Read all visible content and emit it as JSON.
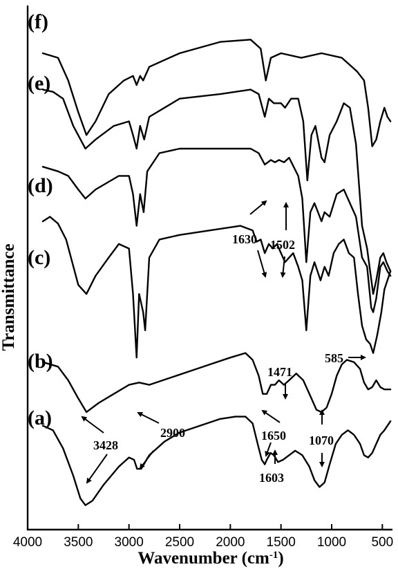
{
  "chart_data": {
    "type": "line",
    "title": "",
    "xlabel": "Wavenumber (cm",
    "xlabel_sup": "-1",
    "xlabel_end": ")",
    "ylabel": "Transmittance",
    "xlim": [
      4000,
      400
    ],
    "x_reversed": true,
    "ytick_labels_shown": false,
    "xticks": [
      {
        "value": 4000,
        "label": "4000"
      },
      {
        "value": 3500,
        "label": "3500"
      },
      {
        "value": 3000,
        "label": "3000"
      },
      {
        "value": 2500,
        "label": "2500"
      },
      {
        "value": 2000,
        "label": "2000"
      },
      {
        "value": 1500,
        "label": "1500"
      },
      {
        "value": 1000,
        "label": "1000"
      },
      {
        "value": 500,
        "label": "500"
      }
    ],
    "series": [
      {
        "name": "(f)",
        "points": [
          [
            3850,
            0.93
          ],
          [
            3700,
            0.92
          ],
          [
            3600,
            0.87
          ],
          [
            3500,
            0.8
          ],
          [
            3420,
            0.75
          ],
          [
            3330,
            0.78
          ],
          [
            3200,
            0.84
          ],
          [
            3050,
            0.87
          ],
          [
            2960,
            0.88
          ],
          [
            2925,
            0.86
          ],
          [
            2890,
            0.88
          ],
          [
            2860,
            0.87
          ],
          [
            2800,
            0.9
          ],
          [
            2500,
            0.93
          ],
          [
            2100,
            0.955
          ],
          [
            1800,
            0.96
          ],
          [
            1700,
            0.94
          ],
          [
            1650,
            0.87
          ],
          [
            1600,
            0.92
          ],
          [
            1500,
            0.93
          ],
          [
            1300,
            0.92
          ],
          [
            1100,
            0.93
          ],
          [
            900,
            0.92
          ],
          [
            750,
            0.89
          ],
          [
            680,
            0.87
          ],
          [
            640,
            0.81
          ],
          [
            600,
            0.725
          ],
          [
            560,
            0.74
          ],
          [
            520,
            0.78
          ],
          [
            480,
            0.81
          ],
          [
            450,
            0.79
          ],
          [
            420,
            0.78
          ]
        ]
      },
      {
        "name": "(e)",
        "points": [
          [
            3850,
            0.85
          ],
          [
            3750,
            0.845
          ],
          [
            3650,
            0.83
          ],
          [
            3550,
            0.77
          ],
          [
            3430,
            0.72
          ],
          [
            3330,
            0.74
          ],
          [
            3150,
            0.77
          ],
          [
            3000,
            0.78
          ],
          [
            2960,
            0.75
          ],
          [
            2925,
            0.72
          ],
          [
            2890,
            0.77
          ],
          [
            2850,
            0.74
          ],
          [
            2800,
            0.79
          ],
          [
            2500,
            0.83
          ],
          [
            2100,
            0.84
          ],
          [
            1800,
            0.85
          ],
          [
            1720,
            0.84
          ],
          [
            1660,
            0.79
          ],
          [
            1620,
            0.83
          ],
          [
            1570,
            0.82
          ],
          [
            1500,
            0.82
          ],
          [
            1460,
            0.81
          ],
          [
            1400,
            0.83
          ],
          [
            1330,
            0.83
          ],
          [
            1280,
            0.78
          ],
          [
            1240,
            0.65
          ],
          [
            1200,
            0.75
          ],
          [
            1160,
            0.77
          ],
          [
            1100,
            0.7
          ],
          [
            1070,
            0.69
          ],
          [
            1020,
            0.75
          ],
          [
            950,
            0.78
          ],
          [
            880,
            0.82
          ],
          [
            820,
            0.81
          ],
          [
            760,
            0.73
          ],
          [
            700,
            0.55
          ],
          [
            650,
            0.5
          ],
          [
            620,
            0.45
          ],
          [
            590,
            0.4
          ],
          [
            560,
            0.43
          ],
          [
            520,
            0.48
          ],
          [
            490,
            0.49
          ],
          [
            460,
            0.47
          ],
          [
            420,
            0.45
          ]
        ]
      },
      {
        "name": "(d)",
        "points": [
          [
            3850,
            0.68
          ],
          [
            3700,
            0.67
          ],
          [
            3600,
            0.66
          ],
          [
            3500,
            0.63
          ],
          [
            3430,
            0.61
          ],
          [
            3330,
            0.63
          ],
          [
            3100,
            0.66
          ],
          [
            3000,
            0.66
          ],
          [
            2960,
            0.62
          ],
          [
            2925,
            0.55
          ],
          [
            2890,
            0.62
          ],
          [
            2855,
            0.58
          ],
          [
            2820,
            0.67
          ],
          [
            2700,
            0.71
          ],
          [
            2500,
            0.72
          ],
          [
            2100,
            0.72
          ],
          [
            1800,
            0.72
          ],
          [
            1720,
            0.71
          ],
          [
            1660,
            0.685
          ],
          [
            1600,
            0.695
          ],
          [
            1560,
            0.69
          ],
          [
            1520,
            0.695
          ],
          [
            1470,
            0.69
          ],
          [
            1420,
            0.7
          ],
          [
            1330,
            0.66
          ],
          [
            1290,
            0.61
          ],
          [
            1250,
            0.47
          ],
          [
            1210,
            0.58
          ],
          [
            1170,
            0.6
          ],
          [
            1100,
            0.56
          ],
          [
            1070,
            0.58
          ],
          [
            1020,
            0.57
          ],
          [
            950,
            0.62
          ],
          [
            880,
            0.63
          ],
          [
            800,
            0.59
          ],
          [
            760,
            0.57
          ],
          [
            700,
            0.48
          ],
          [
            650,
            0.46
          ],
          [
            610,
            0.37
          ],
          [
            590,
            0.36
          ],
          [
            560,
            0.39
          ],
          [
            520,
            0.46
          ],
          [
            490,
            0.47
          ],
          [
            450,
            0.45
          ],
          [
            420,
            0.44
          ]
        ]
      },
      {
        "name": "(c)",
        "points": [
          [
            3850,
            0.56
          ],
          [
            3780,
            0.57
          ],
          [
            3700,
            0.555
          ],
          [
            3620,
            0.52
          ],
          [
            3560,
            0.47
          ],
          [
            3500,
            0.42
          ],
          [
            3420,
            0.4
          ],
          [
            3330,
            0.44
          ],
          [
            3200,
            0.48
          ],
          [
            3100,
            0.51
          ],
          [
            3000,
            0.5
          ],
          [
            2960,
            0.4
          ],
          [
            2925,
            0.26
          ],
          [
            2900,
            0.4
          ],
          [
            2860,
            0.36
          ],
          [
            2840,
            0.32
          ],
          [
            2800,
            0.48
          ],
          [
            2700,
            0.52
          ],
          [
            2500,
            0.53
          ],
          [
            2200,
            0.54
          ],
          [
            1900,
            0.55
          ],
          [
            1780,
            0.54
          ],
          [
            1740,
            0.515
          ],
          [
            1700,
            0.52
          ],
          [
            1660,
            0.49
          ],
          [
            1620,
            0.51
          ],
          [
            1580,
            0.5
          ],
          [
            1540,
            0.51
          ],
          [
            1500,
            0.49
          ],
          [
            1460,
            0.47
          ],
          [
            1420,
            0.48
          ],
          [
            1380,
            0.49
          ],
          [
            1330,
            0.46
          ],
          [
            1290,
            0.43
          ],
          [
            1250,
            0.32
          ],
          [
            1210,
            0.44
          ],
          [
            1170,
            0.47
          ],
          [
            1110,
            0.43
          ],
          [
            1070,
            0.46
          ],
          [
            1030,
            0.44
          ],
          [
            980,
            0.49
          ],
          [
            930,
            0.51
          ],
          [
            880,
            0.52
          ],
          [
            830,
            0.49
          ],
          [
            780,
            0.48
          ],
          [
            740,
            0.4
          ],
          [
            700,
            0.33
          ],
          [
            660,
            0.3
          ],
          [
            620,
            0.29
          ],
          [
            590,
            0.27
          ],
          [
            550,
            0.31
          ],
          [
            510,
            0.36
          ],
          [
            480,
            0.41
          ],
          [
            450,
            0.43
          ],
          [
            420,
            0.45
          ]
        ]
      },
      {
        "name": "(b)",
        "points": [
          [
            3850,
            0.25
          ],
          [
            3700,
            0.24
          ],
          [
            3600,
            0.21
          ],
          [
            3500,
            0.17
          ],
          [
            3420,
            0.14
          ],
          [
            3300,
            0.16
          ],
          [
            3150,
            0.18
          ],
          [
            3000,
            0.2
          ],
          [
            2900,
            0.205
          ],
          [
            2800,
            0.2
          ],
          [
            2600,
            0.215
          ],
          [
            2400,
            0.23
          ],
          [
            2200,
            0.245
          ],
          [
            2000,
            0.26
          ],
          [
            1850,
            0.27
          ],
          [
            1780,
            0.255
          ],
          [
            1720,
            0.22
          ],
          [
            1680,
            0.18
          ],
          [
            1640,
            0.18
          ],
          [
            1600,
            0.2
          ],
          [
            1560,
            0.2
          ],
          [
            1520,
            0.21
          ],
          [
            1471,
            0.2
          ],
          [
            1420,
            0.21
          ],
          [
            1350,
            0.225
          ],
          [
            1280,
            0.21
          ],
          [
            1200,
            0.17
          ],
          [
            1150,
            0.145
          ],
          [
            1100,
            0.14
          ],
          [
            1050,
            0.15
          ],
          [
            1000,
            0.18
          ],
          [
            950,
            0.22
          ],
          [
            900,
            0.245
          ],
          [
            850,
            0.255
          ],
          [
            780,
            0.25
          ],
          [
            720,
            0.235
          ],
          [
            680,
            0.205
          ],
          [
            640,
            0.19
          ],
          [
            600,
            0.195
          ],
          [
            560,
            0.21
          ],
          [
            520,
            0.195
          ],
          [
            480,
            0.19
          ],
          [
            440,
            0.19
          ],
          [
            420,
            0.19
          ]
        ]
      },
      {
        "name": "(a)",
        "points": [
          [
            3850,
            0.11
          ],
          [
            3750,
            0.1
          ],
          [
            3650,
            0.06
          ],
          [
            3550,
            0.0
          ],
          [
            3480,
            -0.05
          ],
          [
            3430,
            -0.065
          ],
          [
            3360,
            -0.055
          ],
          [
            3250,
            -0.02
          ],
          [
            3100,
            0.02
          ],
          [
            3000,
            0.04
          ],
          [
            2950,
            0.035
          ],
          [
            2920,
            0.015
          ],
          [
            2880,
            0.015
          ],
          [
            2800,
            0.045
          ],
          [
            2650,
            0.075
          ],
          [
            2500,
            0.095
          ],
          [
            2300,
            0.11
          ],
          [
            2100,
            0.125
          ],
          [
            1950,
            0.13
          ],
          [
            1850,
            0.13
          ],
          [
            1780,
            0.115
          ],
          [
            1730,
            0.07
          ],
          [
            1690,
            0.035
          ],
          [
            1660,
            0.025
          ],
          [
            1640,
            0.035
          ],
          [
            1603,
            0.05
          ],
          [
            1570,
            0.045
          ],
          [
            1530,
            0.03
          ],
          [
            1480,
            0.035
          ],
          [
            1420,
            0.045
          ],
          [
            1360,
            0.055
          ],
          [
            1290,
            0.045
          ],
          [
            1220,
            0.02
          ],
          [
            1170,
            -0.01
          ],
          [
            1120,
            -0.025
          ],
          [
            1070,
            -0.015
          ],
          [
            1020,
            0.025
          ],
          [
            960,
            0.07
          ],
          [
            900,
            0.09
          ],
          [
            840,
            0.1
          ],
          [
            780,
            0.09
          ],
          [
            720,
            0.07
          ],
          [
            680,
            0.045
          ],
          [
            640,
            0.04
          ],
          [
            600,
            0.05
          ],
          [
            560,
            0.07
          ],
          [
            520,
            0.09
          ],
          [
            480,
            0.1
          ],
          [
            450,
            0.11
          ],
          [
            420,
            0.12
          ]
        ]
      }
    ],
    "annotations": [
      {
        "text": "3428"
      },
      {
        "text": "2900"
      },
      {
        "text": "1650"
      },
      {
        "text": "1603"
      },
      {
        "text": "1070"
      },
      {
        "text": "1471"
      },
      {
        "text": "1630"
      },
      {
        "text": "1502"
      },
      {
        "text": "585"
      }
    ]
  }
}
